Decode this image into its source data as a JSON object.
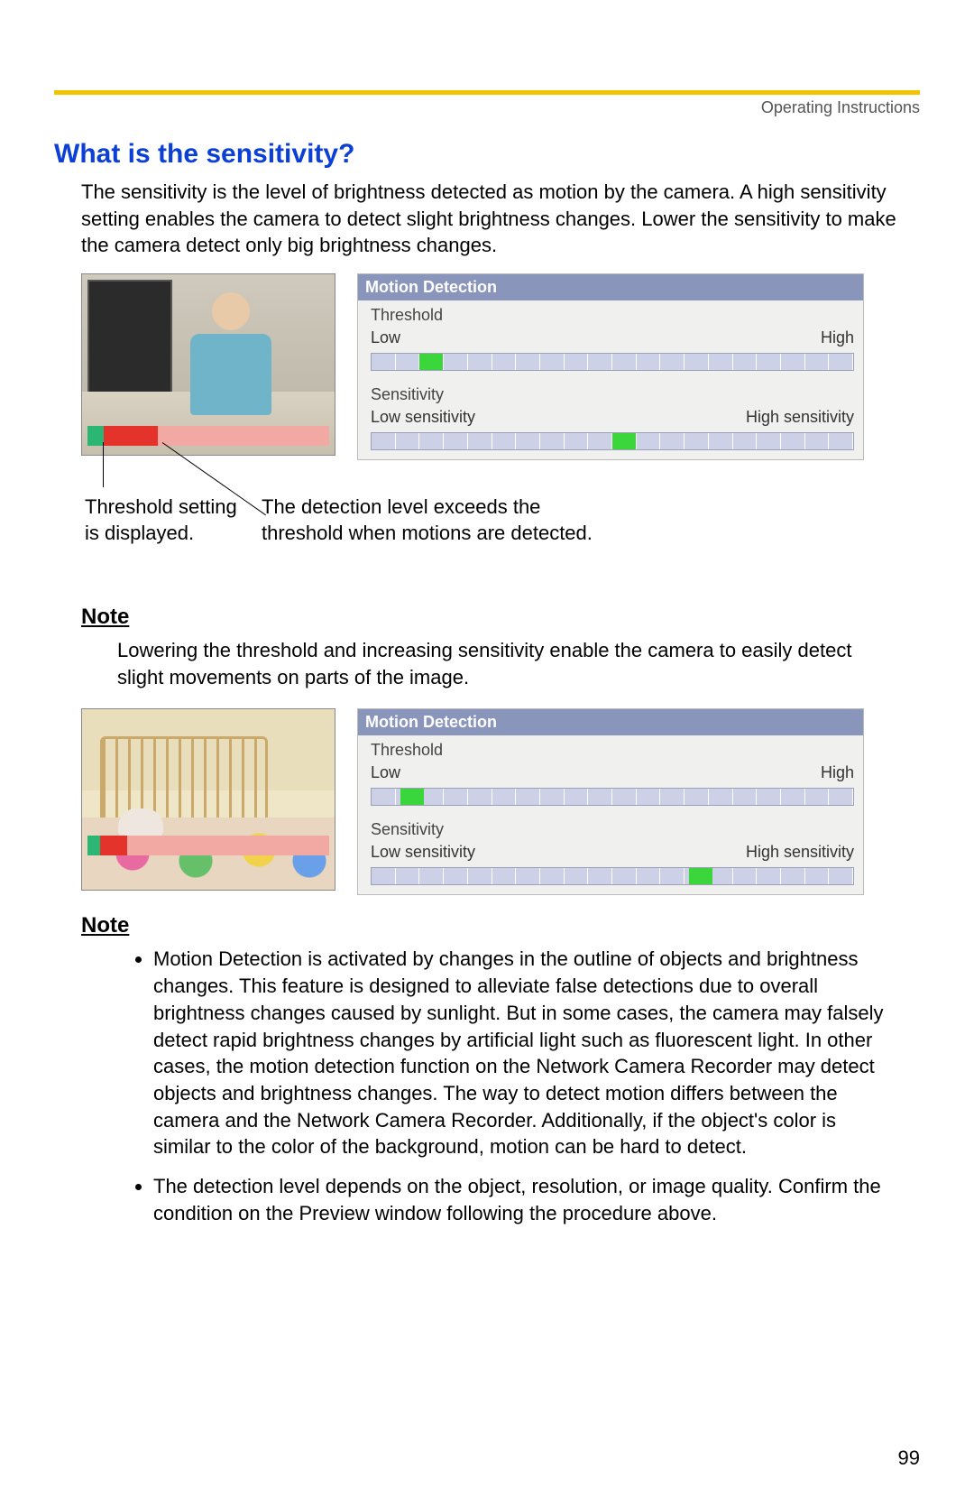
{
  "header": {
    "running_title": "Operating Instructions",
    "page_number": "99"
  },
  "title": "What is the sensitivity?",
  "intro": "The sensitivity is the level of brightness detected as motion by the camera. A high sensitivity setting enables the camera to detect slight brightness changes. Lower the sensitivity to make the camera detect only big brightness changes.",
  "callout": {
    "threshold": "Threshold setting is displayed.",
    "detection": "The detection level exceeds the threshold when motions are detected."
  },
  "note_label": "Note",
  "note1_body": "Lowering the threshold and increasing sensitivity enable the camera to easily detect slight movements on parts of the image.",
  "notes2": [
    "Motion Detection is activated by changes in the outline of objects and brightness changes. This feature is designed to alleviate false detections due to overall brightness changes caused by sunlight. But in some cases, the camera may falsely detect rapid brightness changes by artificial light such as fluorescent light. In other cases, the motion detection function on the Network Camera Recorder may detect objects and brightness changes. The way to detect motion differs between the camera and the Network Camera Recorder. Additionally, if the object's color is similar to the color of the background, motion can be hard to detect.",
    "The detection level depends on the object, resolution, or image quality. Confirm the condition on the Preview window following the procedure above."
  ],
  "panel": {
    "title": "Motion Detection",
    "threshold_label": "Threshold",
    "low": "Low",
    "high": "High",
    "sensitivity_label": "Sensitivity",
    "low_sens": "Low sensitivity",
    "high_sens": "High sensitivity",
    "cells": 20,
    "header_bg": "#8a95bb",
    "cell_bg": "#ccd1e8",
    "marker_color": "#3bd63b"
  },
  "example1": {
    "threshold_marker_pct": 10,
    "sensitivity_marker_pct": 50,
    "bar_seg_a_w": 18,
    "bar_seg_b_w": 60
  },
  "example2": {
    "threshold_marker_pct": 6,
    "sensitivity_marker_pct": 66,
    "bar_seg_a_w": 14,
    "bar_seg_b_w": 30
  },
  "colors": {
    "accent_rule": "#f3c300",
    "title": "#0b3fd6",
    "bar_green": "#2bb673",
    "bar_red": "#e4332b",
    "bar_pink": "#f3a9a3"
  }
}
